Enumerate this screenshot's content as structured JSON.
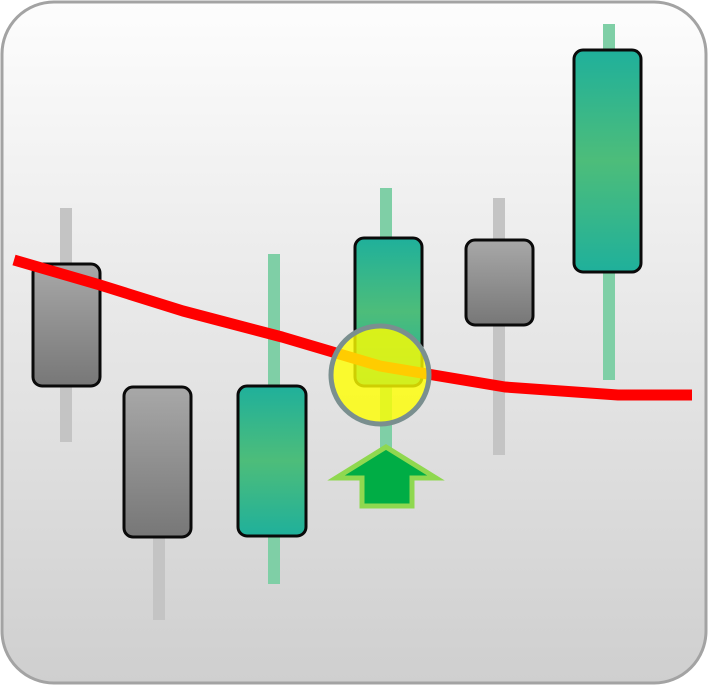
{
  "icon": {
    "name": "candlestick-moving-average-crossover-icon",
    "background": {
      "top": "#fdfdfd",
      "bottom": "#cfcfcf",
      "border": "#a3a3a3"
    },
    "colors": {
      "bearish_body_top": "#a8a8a8",
      "bearish_body_bottom": "#777777",
      "bearish_wick": "#c4c4c4",
      "bullish_body_edge": "#1fb09b",
      "bullish_body_center": "#4dbd7a",
      "bullish_wick": "#7fcfa6",
      "body_stroke": "#0a0a0a",
      "moving_average": "#ff0000",
      "highlight_fill": "#ffff00",
      "highlight_stroke": "#7a8f8f",
      "arrow_fill": "#00ad45",
      "arrow_stroke": "#8fd84f"
    },
    "candles": [
      {
        "type": "bearish"
      },
      {
        "type": "bearish"
      },
      {
        "type": "bullish"
      },
      {
        "type": "bullish"
      },
      {
        "type": "bearish"
      },
      {
        "type": "bullish"
      }
    ],
    "marker": "highlight-circle",
    "signal": "up-arrow"
  }
}
